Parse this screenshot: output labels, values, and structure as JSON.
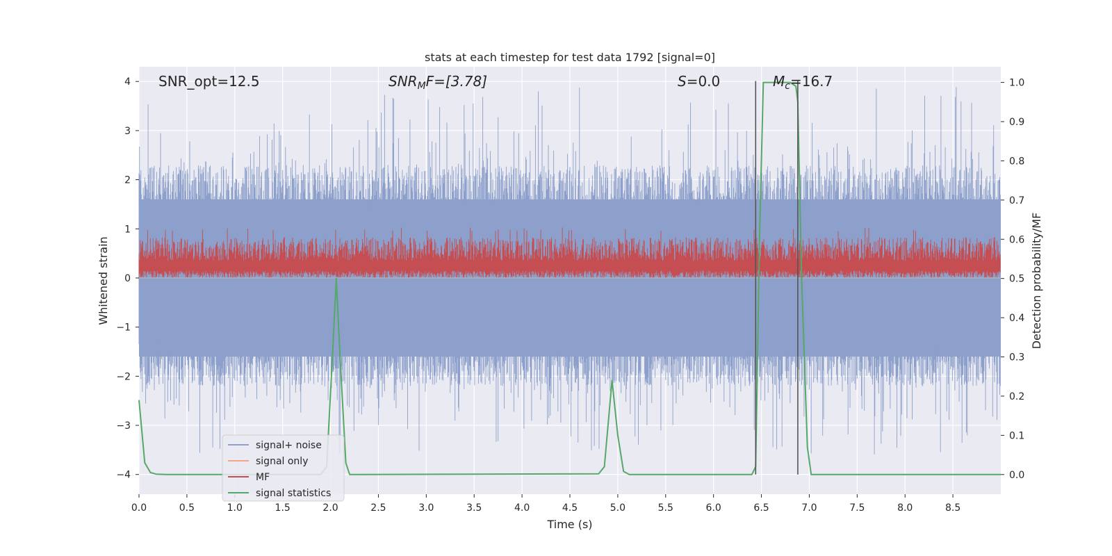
{
  "chart_data": {
    "type": "line",
    "title": "stats at each timestep for test data 1792 [signal=0]",
    "xlabel": "Time (s)",
    "ylabel_left": "Whitened strain",
    "ylabel_right": "Detection probability/MF",
    "xlim": [
      0,
      9.0
    ],
    "ylim_left": [
      -4.4,
      4.3
    ],
    "ylim_right": [
      -0.05,
      1.04
    ],
    "x_ticks": [
      "0.0",
      "0.5",
      "1.0",
      "1.5",
      "2.0",
      "2.5",
      "3.0",
      "3.5",
      "4.0",
      "4.5",
      "5.0",
      "5.5",
      "6.0",
      "6.5",
      "7.0",
      "7.5",
      "8.0",
      "8.5"
    ],
    "y_ticks_left": [
      "4",
      "3",
      "2",
      "1",
      "0",
      "−1",
      "−2",
      "−3",
      "−4"
    ],
    "y_ticks_right": [
      "1.0",
      "0.9",
      "0.8",
      "0.7",
      "0.6",
      "0.5",
      "0.4",
      "0.3",
      "0.2",
      "0.1",
      "0.0"
    ],
    "grid": true,
    "legend_position": "lower-left",
    "annotations": {
      "snr_opt": "SNR_opt=12.5",
      "snr_mf_main": "SNR",
      "snr_mf_sub": "M",
      "snr_mf_tail": "F=[3.78]",
      "s_main": "S",
      "s_tail": "=0.0",
      "mc_main": "M",
      "mc_sub": "c",
      "mc_tail": "=16.7"
    },
    "vertical_lines_x": [
      6.44,
      6.88
    ],
    "series": [
      {
        "name": "signal+ noise",
        "color": "#8da0cb",
        "axis": "left",
        "band": {
          "hi": 1.6,
          "lo": -1.6,
          "peak_hi": 3.9,
          "peak_lo": -3.6
        }
      },
      {
        "name": "signal only",
        "color": "#f4a582",
        "axis": "left",
        "values": []
      },
      {
        "name": "MF",
        "color": "#c44e52",
        "axis": "right",
        "band": {
          "lo": 0.5,
          "hi": 0.625,
          "peak": 0.63
        }
      },
      {
        "name": "signal statistics",
        "color": "#55a868",
        "axis": "right",
        "x": [
          0.0,
          0.06,
          0.12,
          0.18,
          0.3,
          1.9,
          1.96,
          2.02,
          2.06,
          2.1,
          2.16,
          2.2,
          2.3,
          4.8,
          4.86,
          4.94,
          5.0,
          5.06,
          5.12,
          6.4,
          6.44,
          6.48,
          6.52,
          6.8,
          6.86,
          6.88,
          6.92,
          6.98,
          7.02,
          9.0
        ],
        "values": [
          0.19,
          0.03,
          0.005,
          0.001,
          0.0,
          0.0,
          0.02,
          0.3,
          0.5,
          0.3,
          0.03,
          0.0,
          0.0,
          0.002,
          0.02,
          0.24,
          0.1,
          0.008,
          0.0,
          0.0,
          0.02,
          0.6,
          1.0,
          1.0,
          0.99,
          0.95,
          0.5,
          0.07,
          0.0,
          0.0
        ]
      }
    ]
  }
}
